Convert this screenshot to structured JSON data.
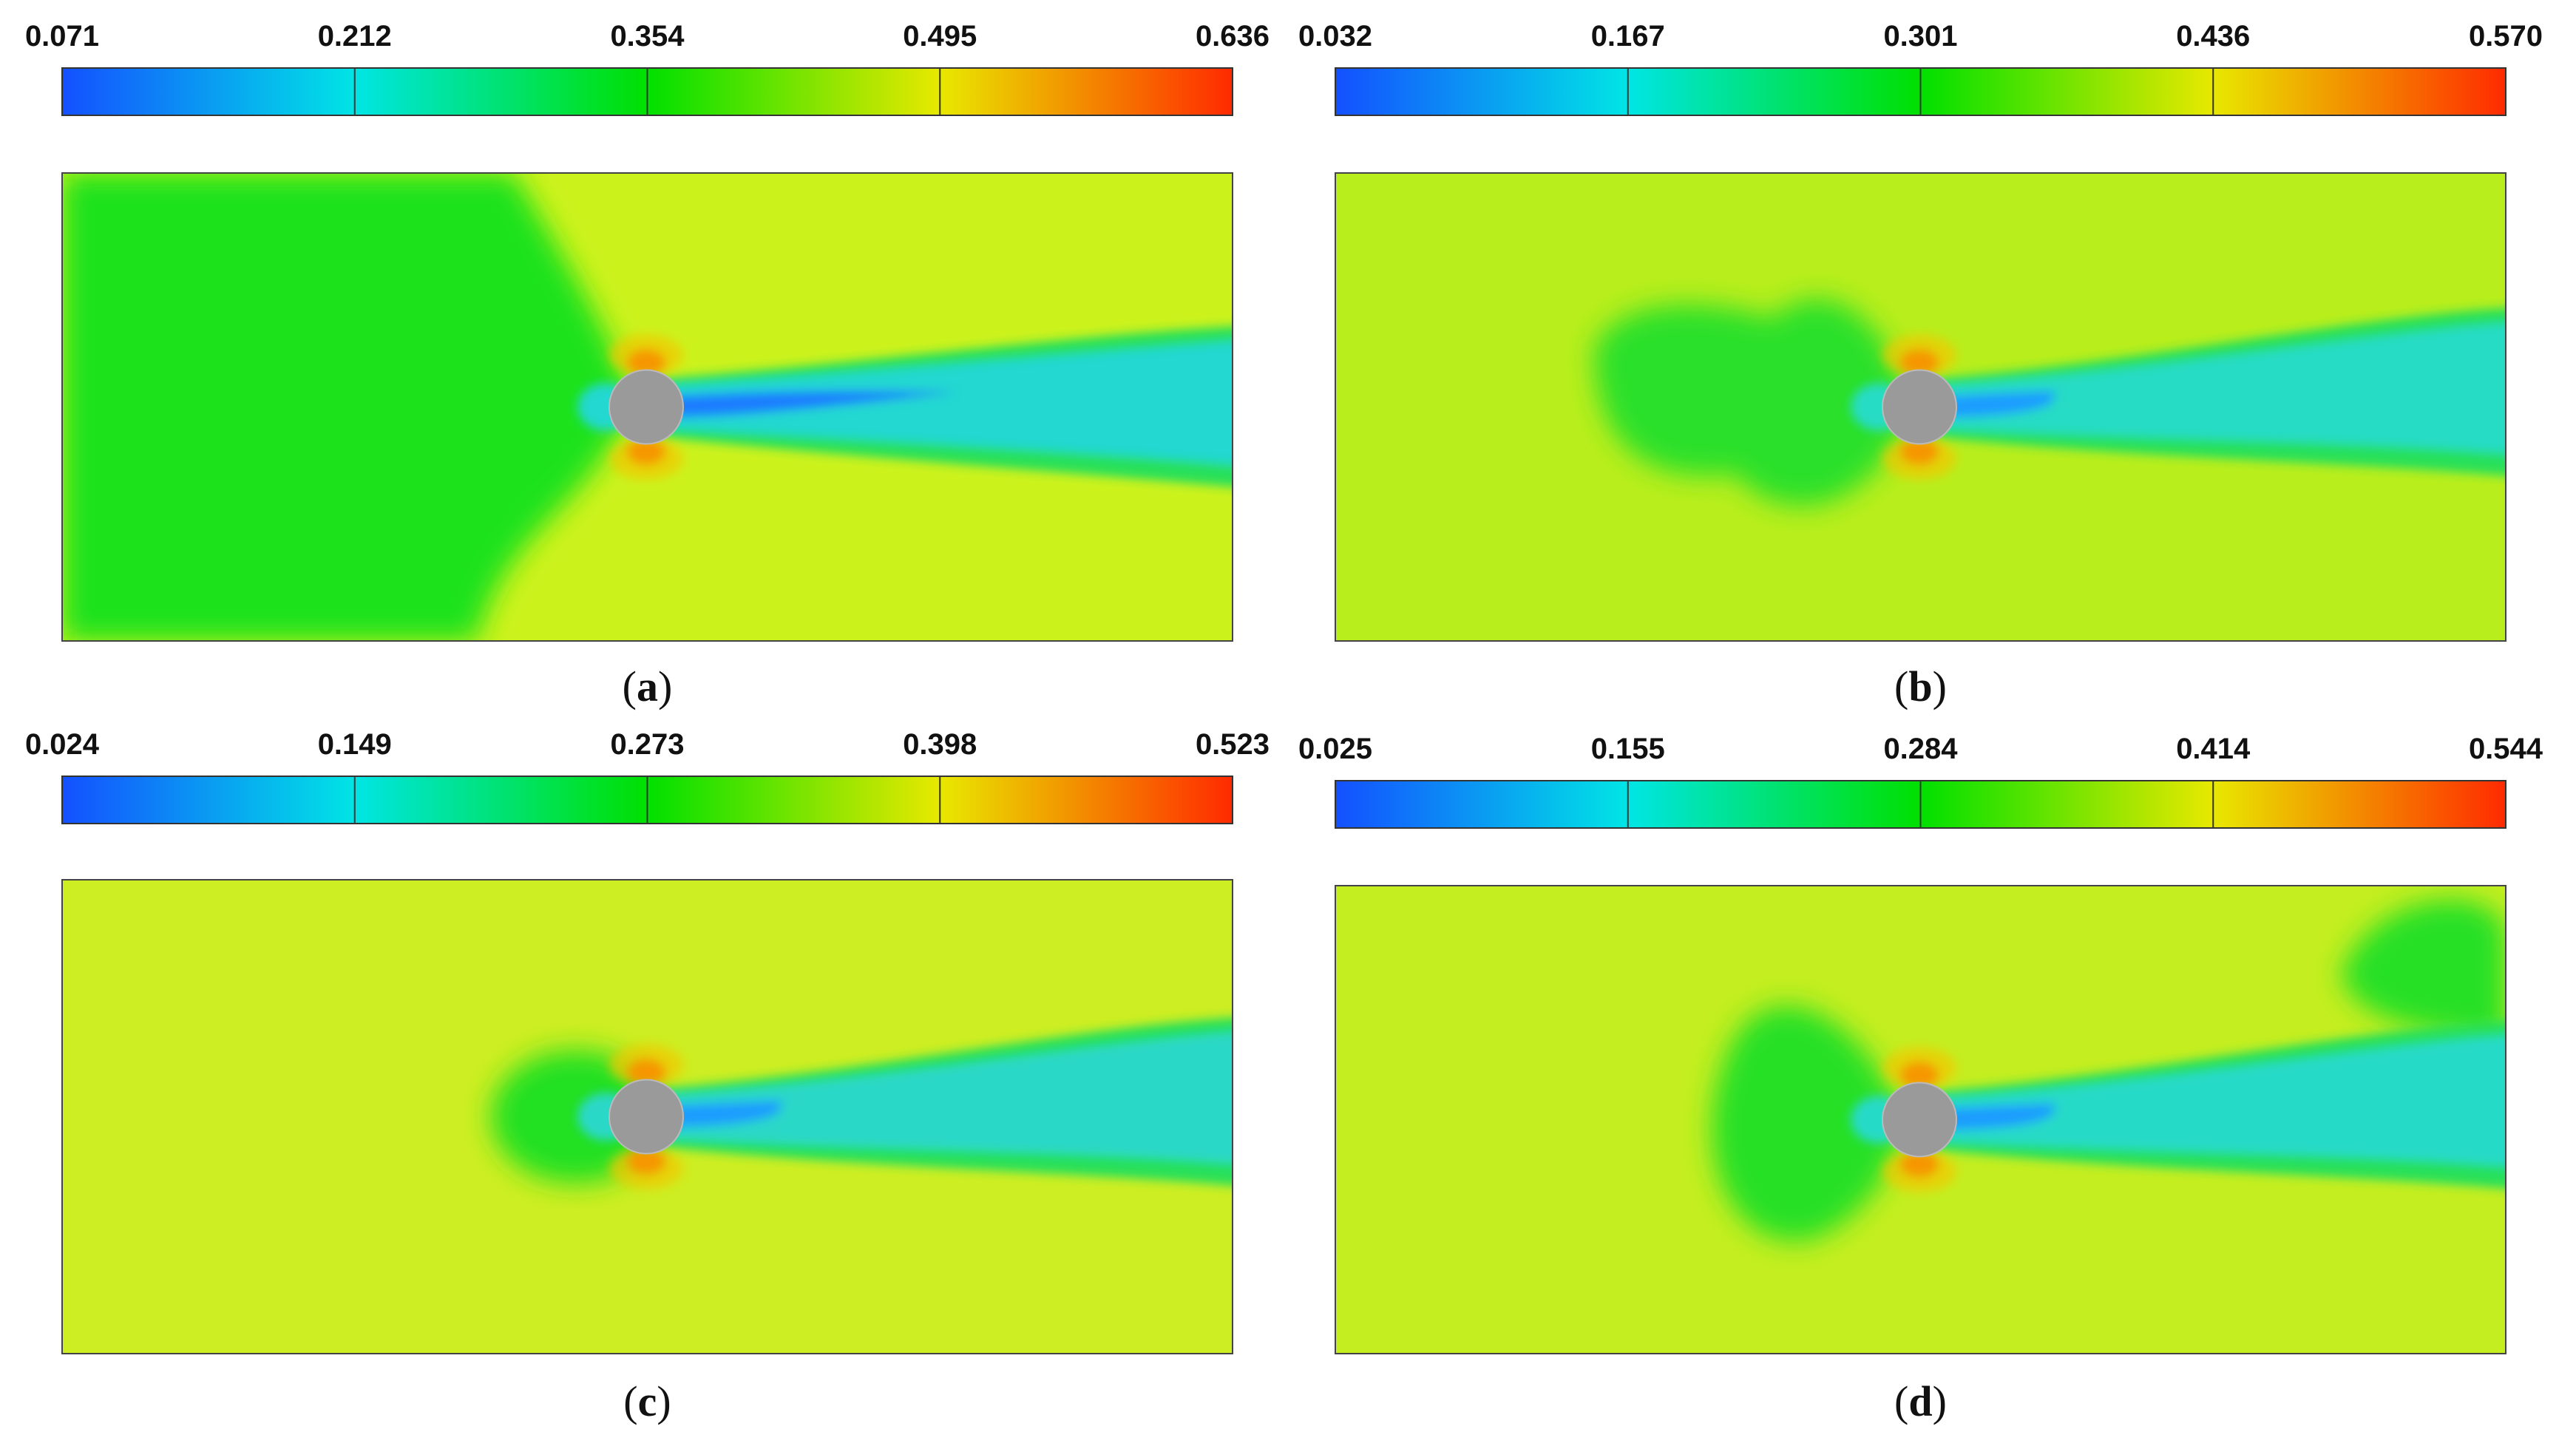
{
  "chart_data": [
    {
      "type": "heatmap",
      "panel_label": "a",
      "colorbar": {
        "min": 0.071,
        "max": 0.636,
        "ticks": [
          "0.071",
          "0.212",
          "0.354",
          "0.495",
          "0.636"
        ],
        "colormap": [
          "#1450ff",
          "#00e5e5",
          "#00e000",
          "#e8e800",
          "#ff2a00"
        ]
      },
      "field": {
        "background": "#ccf21c",
        "upstream_color": "#1ee21e",
        "wake_color": "#22d8d0",
        "wake_core_color": "#1d7cff",
        "stagnation_color": "#ff2200",
        "cylinder_color": "#9a9a9a"
      }
    },
    {
      "type": "heatmap",
      "panel_label": "b",
      "colorbar": {
        "min": 0.032,
        "max": 0.57,
        "ticks": [
          "0.032",
          "0.167",
          "0.301",
          "0.436",
          "0.570"
        ],
        "colormap": [
          "#1450ff",
          "#00e5e5",
          "#00e000",
          "#e8e800",
          "#ff2a00"
        ]
      },
      "field": {
        "background": "#b8ee1c",
        "upstream_color": "#2ae02a",
        "wake_color": "#26dcc4",
        "wake_core_color": "#1d9cff",
        "stagnation_color": "#ff2200",
        "cylinder_color": "#9a9a9a"
      }
    },
    {
      "type": "heatmap",
      "panel_label": "c",
      "colorbar": {
        "min": 0.024,
        "max": 0.523,
        "ticks": [
          "0.024",
          "0.149",
          "0.273",
          "0.398",
          "0.523"
        ],
        "colormap": [
          "#1450ff",
          "#00e5e5",
          "#00e000",
          "#e8e800",
          "#ff2a00"
        ]
      },
      "field": {
        "background": "#cdee22",
        "upstream_color": "#22e022",
        "wake_color": "#2ad8c8",
        "wake_core_color": "#1d9cff",
        "stagnation_color": "#ff2200",
        "cylinder_color": "#9a9a9a"
      }
    },
    {
      "type": "heatmap",
      "panel_label": "d",
      "colorbar": {
        "min": 0.025,
        "max": 0.544,
        "ticks": [
          "0.025",
          "0.155",
          "0.284",
          "0.414",
          "0.544"
        ],
        "colormap": [
          "#1450ff",
          "#00e5e5",
          "#00e000",
          "#e8e800",
          "#ff2a00"
        ]
      },
      "field": {
        "background": "#c4ee20",
        "upstream_color": "#26e026",
        "wake_color": "#28dac8",
        "wake_core_color": "#1d9cff",
        "stagnation_color": "#ff2200",
        "cylinder_color": "#9a9a9a"
      }
    }
  ]
}
